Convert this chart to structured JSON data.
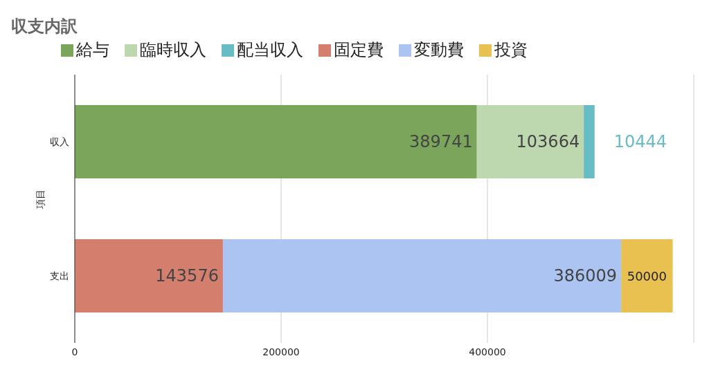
{
  "chart_data": {
    "type": "bar",
    "orientation": "horizontal",
    "stacked": true,
    "title": "収支内訳",
    "ylabel": "項目",
    "categories": [
      "収入",
      "支出"
    ],
    "series": [
      {
        "name": "給与",
        "color": "#7aa55a",
        "values": [
          389741,
          null
        ]
      },
      {
        "name": "臨時収入",
        "color": "#bdd7ae",
        "values": [
          103664,
          null
        ]
      },
      {
        "name": "配当収入",
        "color": "#67bcc6",
        "values": [
          10444,
          null
        ]
      },
      {
        "name": "固定費",
        "color": "#d47f6e",
        "values": [
          null,
          143576
        ]
      },
      {
        "name": "変動費",
        "color": "#abc4f1",
        "values": [
          null,
          386009
        ]
      },
      {
        "name": "投資",
        "color": "#e9c150",
        "values": [
          null,
          50000
        ]
      }
    ],
    "xlim": [
      0,
      600000
    ],
    "xticks": [
      0,
      200000,
      400000,
      {
        "value": 600000,
        "label": null
      }
    ],
    "grid": "x",
    "legend": "top left",
    "data_labels": true
  }
}
